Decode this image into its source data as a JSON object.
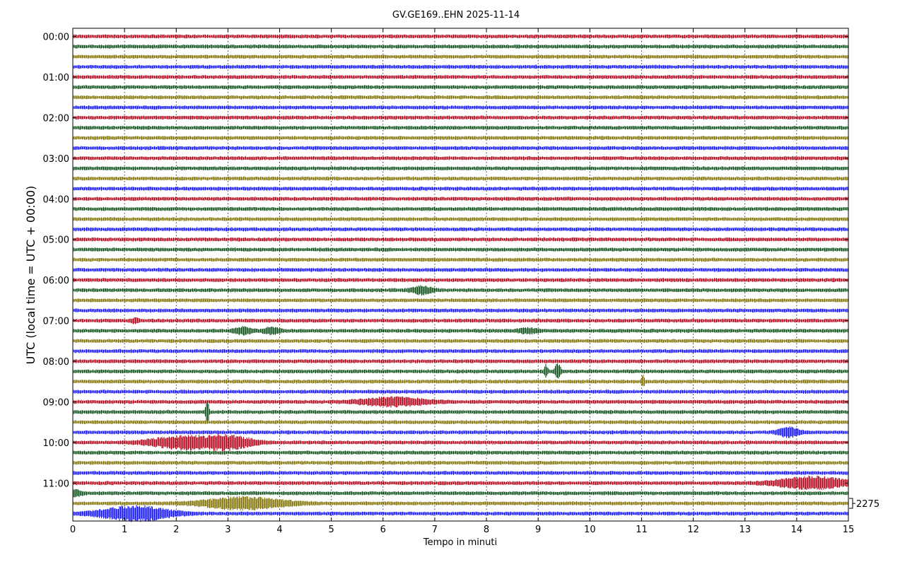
{
  "chart_data": {
    "type": "line",
    "title": "GV.GE169..EHN 2025-11-14",
    "xlabel": "Tempo in minuti",
    "ylabel": "UTC (local time = UTC + 00:00)",
    "xlim": [
      0,
      15
    ],
    "x_ticks": [
      0,
      1,
      2,
      3,
      4,
      5,
      6,
      7,
      8,
      9,
      10,
      11,
      12,
      13,
      14,
      15
    ],
    "y_tick_labels": [
      "00:00",
      "01:00",
      "02:00",
      "03:00",
      "04:00",
      "05:00",
      "06:00",
      "07:00",
      "08:00",
      "09:00",
      "10:00",
      "11:00"
    ],
    "trace_colors": [
      "#b00016",
      "#0a5016",
      "#807000",
      "#1010ff"
    ],
    "trace_interval_minutes": 15,
    "trace_count": 48,
    "scale_label": "2275",
    "grid": "vertical dotted at each minute",
    "events": [
      {
        "trace_start": "06:15",
        "minute": 6.75,
        "amplitude": 2.5,
        "duration_min": 0.3
      },
      {
        "trace_start": "07:00",
        "minute": 1.2,
        "amplitude": 1.6,
        "duration_min": 0.1
      },
      {
        "trace_start": "07:15",
        "minute": 3.3,
        "amplitude": 2.2,
        "duration_min": 0.25
      },
      {
        "trace_start": "07:15",
        "minute": 3.85,
        "amplitude": 2.0,
        "duration_min": 0.25
      },
      {
        "trace_start": "07:15",
        "minute": 8.8,
        "amplitude": 1.5,
        "duration_min": 0.3
      },
      {
        "trace_start": "08:15",
        "minute": 9.15,
        "amplitude": 4.5,
        "duration_min": 0.05
      },
      {
        "trace_start": "08:15",
        "minute": 9.38,
        "amplitude": 5.5,
        "duration_min": 0.08
      },
      {
        "trace_start": "08:30",
        "minute": 11.03,
        "amplitude": 4.0,
        "duration_min": 0.04
      },
      {
        "trace_start": "09:00",
        "minute": 6.2,
        "amplitude": 2.8,
        "duration_min": 1.0
      },
      {
        "trace_start": "09:15",
        "minute": 2.6,
        "amplitude": 8.0,
        "duration_min": 0.05
      },
      {
        "trace_start": "09:45",
        "minute": 13.85,
        "amplitude": 3.0,
        "duration_min": 0.3
      },
      {
        "trace_start": "10:00",
        "minute": 2.2,
        "amplitude": 4.5,
        "duration_min": 1.0
      },
      {
        "trace_start": "10:00",
        "minute": 2.9,
        "amplitude": 5.0,
        "duration_min": 0.8
      },
      {
        "trace_start": "11:00",
        "minute": 14.3,
        "amplitude": 4.0,
        "duration_min": 1.0
      },
      {
        "trace_start": "11:15",
        "minute": 0.05,
        "amplitude": 2.0,
        "duration_min": 0.2
      },
      {
        "trace_start": "11:30",
        "minute": 3.3,
        "amplitude": 4.0,
        "duration_min": 1.2
      },
      {
        "trace_start": "11:45",
        "minute": 1.2,
        "amplitude": 5.0,
        "duration_min": 1.0
      }
    ]
  }
}
